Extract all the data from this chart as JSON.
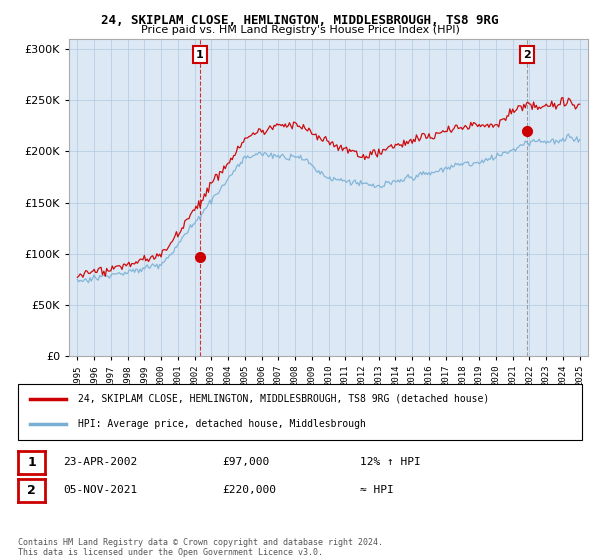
{
  "title_line1": "24, SKIPLAM CLOSE, HEMLINGTON, MIDDLESBROUGH, TS8 9RG",
  "title_line2": "Price paid vs. HM Land Registry's House Price Index (HPI)",
  "legend_line1": "24, SKIPLAM CLOSE, HEMLINGTON, MIDDLESBROUGH, TS8 9RG (detached house)",
  "legend_line2": "HPI: Average price, detached house, Middlesbrough",
  "annotation1_date": "23-APR-2002",
  "annotation1_price": "£97,000",
  "annotation1_hpi": "12% ↑ HPI",
  "annotation2_date": "05-NOV-2021",
  "annotation2_price": "£220,000",
  "annotation2_hpi": "≈ HPI",
  "footer": "Contains HM Land Registry data © Crown copyright and database right 2024.\nThis data is licensed under the Open Government Licence v3.0.",
  "sale1_x": 2002.31,
  "sale1_y": 97000,
  "sale2_x": 2021.84,
  "sale2_y": 220000,
  "ylim": [
    0,
    310000
  ],
  "xlim_start": 1994.5,
  "xlim_end": 2025.5,
  "red_color": "#cc0000",
  "blue_color": "#7aafd4",
  "chart_bg": "#dce9f5",
  "background_color": "#ffffff",
  "grid_color": "#b0c8e0"
}
